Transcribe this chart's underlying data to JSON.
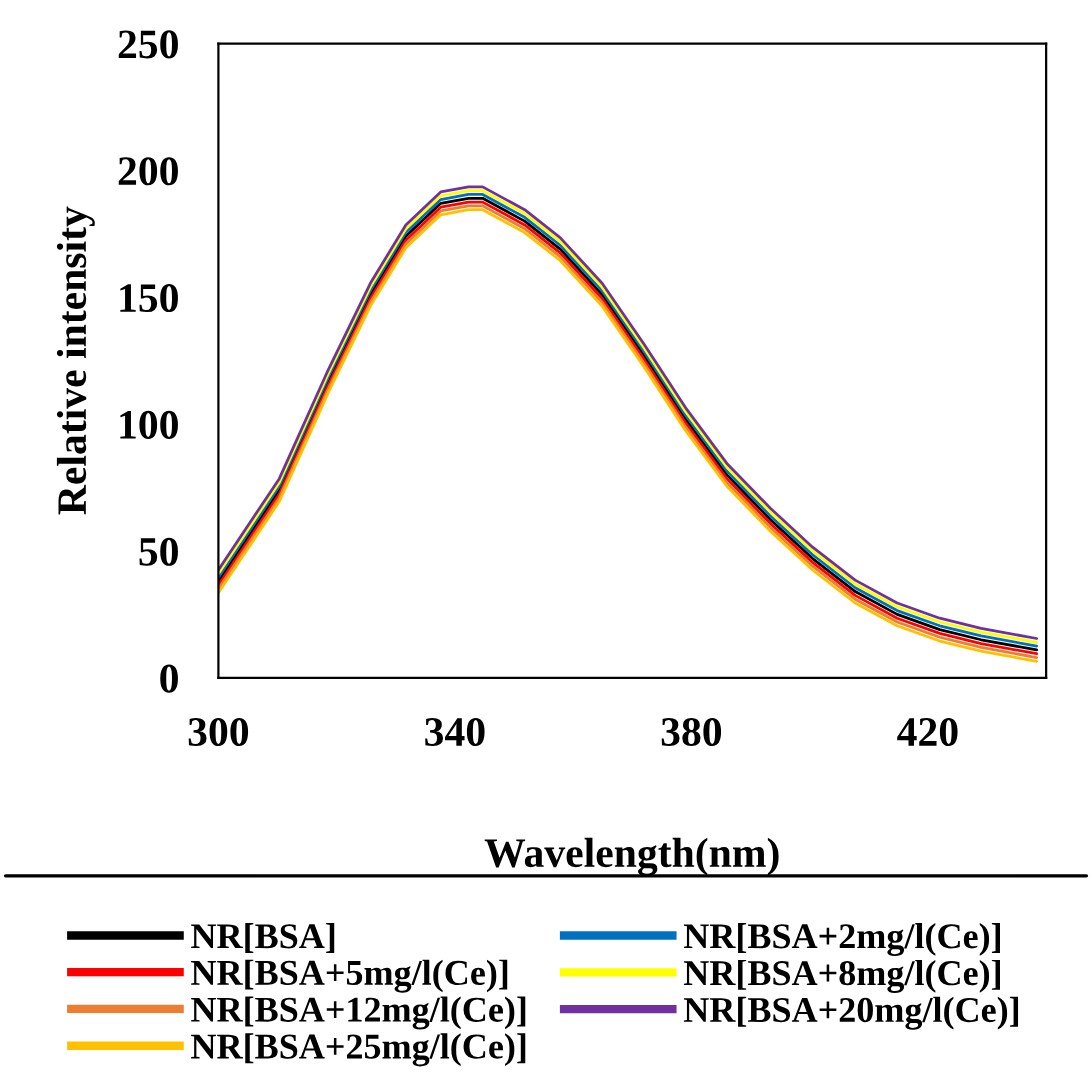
{
  "chart_data": {
    "type": "line",
    "xlabel": "Wavelength(nm)",
    "ylabel": "Relative intensity",
    "x": [
      300,
      310.3,
      318.6,
      325.7,
      331.7,
      337.6,
      342.3,
      344.7,
      351.8,
      357.8,
      364.9,
      372,
      379,
      386,
      393.5,
      400.5,
      407.7,
      414.8,
      422,
      429,
      438.4
    ],
    "xlim": [
      300,
      440
    ],
    "xticks": [
      300,
      340,
      380,
      420
    ],
    "ylim": [
      0,
      250
    ],
    "yticks": [
      0,
      50,
      100,
      150,
      200,
      250
    ],
    "grid": false,
    "legend": "bottom",
    "marker": "none",
    "line_style": "solid",
    "series": [
      {
        "name": "NR[BSA]",
        "color": "#000000",
        "values": [
          38,
          74,
          117,
          151,
          174,
          187,
          189,
          189,
          180,
          169,
          151,
          127,
          102,
          80,
          62,
          47,
          34,
          25,
          19,
          15,
          11
        ]
      },
      {
        "name": "NR[BSA+2mg/l(Ce)]",
        "color": "#0070c0",
        "values": [
          39.5,
          75.5,
          118.5,
          152.5,
          175.5,
          188.5,
          190.5,
          190.5,
          181.5,
          170.5,
          152.5,
          128.5,
          103.5,
          81.5,
          63.5,
          48.5,
          35.5,
          26.5,
          20.5,
          16.5,
          12.5
        ]
      },
      {
        "name": "NR[BSA+5mg/l(Ce)]",
        "color": "#ff0000",
        "values": [
          36.5,
          72.5,
          115.5,
          149.5,
          172.5,
          185.5,
          187.5,
          187.5,
          178.5,
          167.5,
          149.5,
          125.5,
          100.5,
          78.5,
          60.5,
          45.5,
          32.5,
          23.5,
          17.5,
          13.5,
          9.5
        ]
      },
      {
        "name": "NR[BSA+8mg/l(Ce)]",
        "color": "#ffff00",
        "values": [
          41,
          77,
          120,
          154,
          177,
          190,
          192,
          192,
          183,
          172,
          154,
          130,
          105,
          83,
          65,
          50,
          37,
          28,
          22,
          18,
          14
        ]
      },
      {
        "name": "NR[BSA+12mg/l(Ce)]",
        "color": "#ed7d31",
        "values": [
          35,
          71,
          114,
          148,
          171,
          184,
          186,
          186,
          177,
          166,
          148,
          124,
          99,
          77,
          59,
          44,
          31,
          22,
          16,
          12,
          8
        ]
      },
      {
        "name": "NR[BSA+20mg/l(Ce)]",
        "color": "#7030a0",
        "values": [
          42.5,
          78.5,
          121.5,
          155.5,
          178.5,
          191.5,
          193.5,
          193.5,
          184.5,
          173.5,
          155.5,
          131.5,
          106.5,
          84.5,
          66.5,
          51.5,
          38.5,
          29.5,
          23.5,
          19.5,
          15.5
        ]
      },
      {
        "name": "NR[BSA+25mg/l(Ce)]",
        "color": "#ffc000",
        "values": [
          33.5,
          69.5,
          112.5,
          146.5,
          169.5,
          182.5,
          184.5,
          184.5,
          175.5,
          164.5,
          146.5,
          122.5,
          97.5,
          75.5,
          57.5,
          42.5,
          29.5,
          20.5,
          14.5,
          10.5,
          6.5
        ]
      }
    ]
  }
}
